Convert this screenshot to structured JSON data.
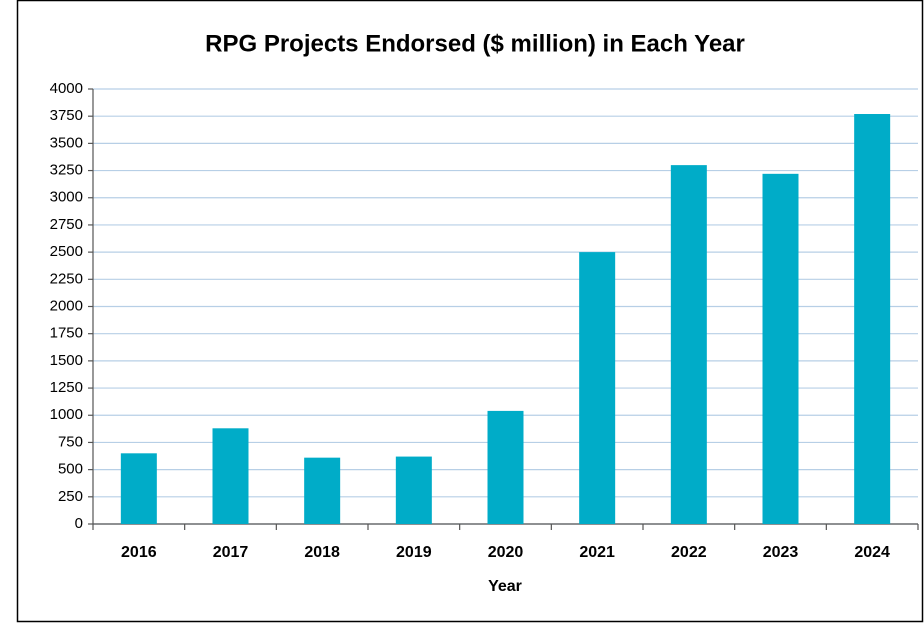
{
  "chart_data": {
    "type": "bar",
    "title": "RPG Projects Endorsed ($ million) in Each Year",
    "x_label": "Year",
    "categories": [
      "2016",
      "2017",
      "2018",
      "2019",
      "2020",
      "2021",
      "2022",
      "2023",
      "2024"
    ],
    "values": [
      650,
      880,
      610,
      620,
      1040,
      2500,
      3300,
      3220,
      3770
    ],
    "color": "#00acc8",
    "ylim": [
      0,
      4000
    ],
    "yticks": [
      0,
      250,
      500,
      750,
      1000,
      1250,
      1500,
      1750,
      2000,
      2250,
      2500,
      2750,
      3000,
      3250,
      3500,
      3750,
      4000
    ],
    "grid": true
  }
}
